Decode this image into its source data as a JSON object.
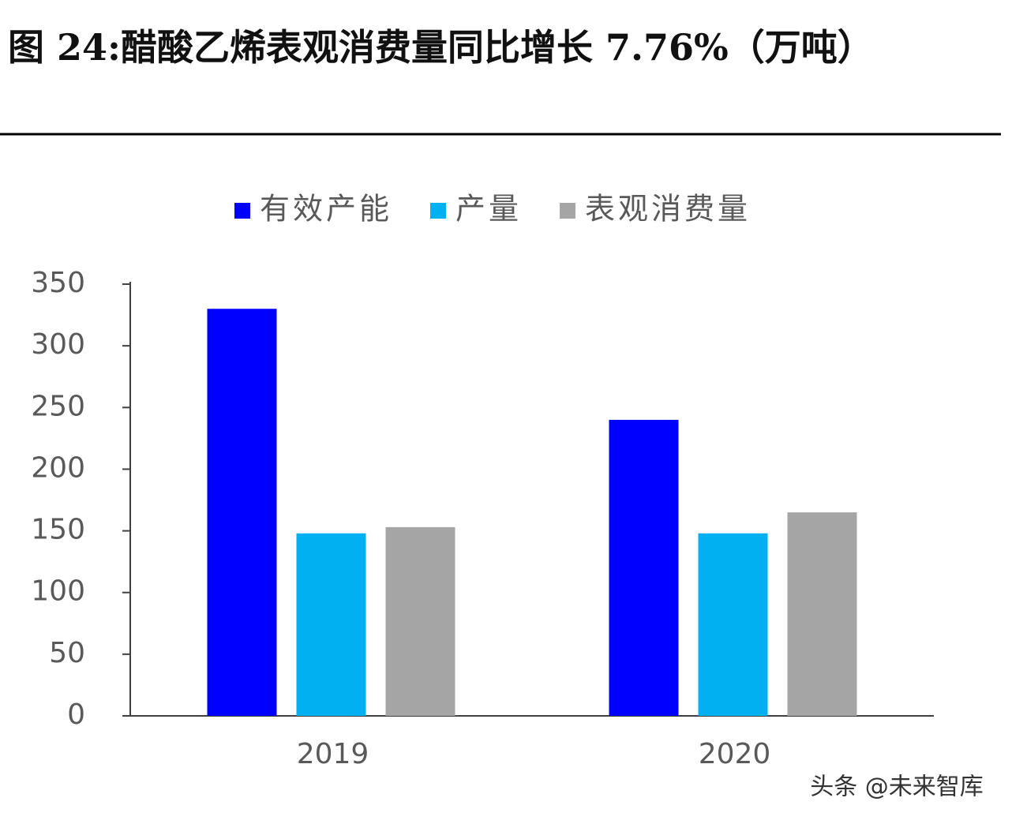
{
  "chart_data": {
    "type": "bar",
    "title": "图 24:醋酸乙烯表观消费量同比增长 7.76%（万吨）",
    "categories": [
      "2019",
      "2020"
    ],
    "series": [
      {
        "name": "有效产能",
        "color": "#0000ff",
        "values": [
          330,
          240
        ]
      },
      {
        "name": "产量",
        "color": "#00b0f0",
        "values": [
          148,
          148
        ]
      },
      {
        "name": "表观消费量",
        "color": "#a5a5a5",
        "values": [
          153,
          165
        ]
      }
    ],
    "ylim": [
      0,
      350
    ],
    "yticks": [
      0,
      50,
      100,
      150,
      200,
      250,
      300,
      350
    ],
    "legend": "top",
    "watermark": "头条 @未来智库"
  }
}
